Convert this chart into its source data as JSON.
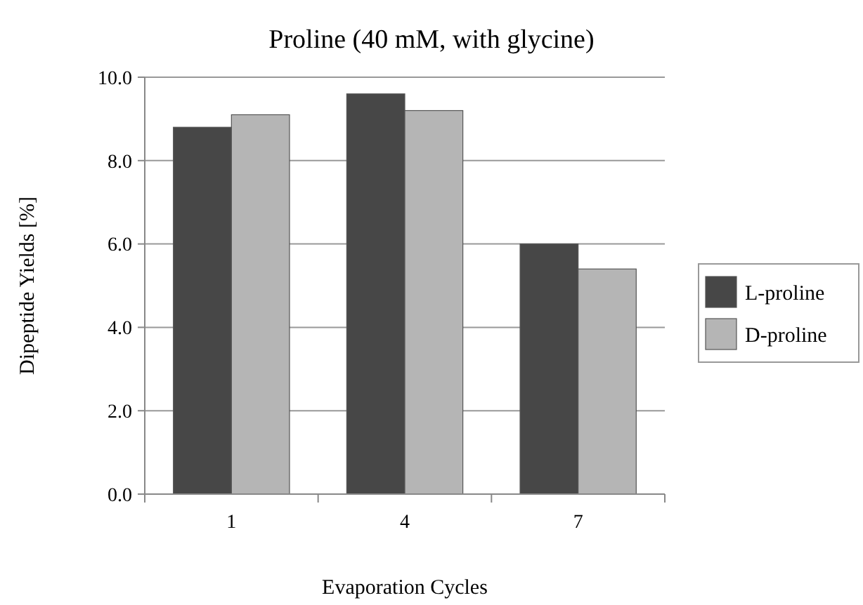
{
  "chart_data": {
    "type": "bar",
    "title": "Proline (40 mM, with glycine)",
    "xlabel": "Evaporation Cycles",
    "ylabel": "Dipeptide Yields [%]",
    "categories": [
      "1",
      "4",
      "7"
    ],
    "series": [
      {
        "name": "L-proline",
        "color": "#474747",
        "values": [
          8.8,
          9.6,
          6.0
        ]
      },
      {
        "name": "D-proline",
        "color": "#b5b5b5",
        "values": [
          9.1,
          9.2,
          5.4
        ]
      }
    ],
    "ylim": [
      0,
      10
    ],
    "yticks": [
      {
        "value": 0,
        "label": "0.0"
      },
      {
        "value": 2,
        "label": "2.0"
      },
      {
        "value": 4,
        "label": "4.0"
      },
      {
        "value": 6,
        "label": "6.0"
      },
      {
        "value": 8,
        "label": "8.0"
      },
      {
        "value": 10,
        "label": "10.0"
      }
    ],
    "grid": "y",
    "legend": "right"
  }
}
